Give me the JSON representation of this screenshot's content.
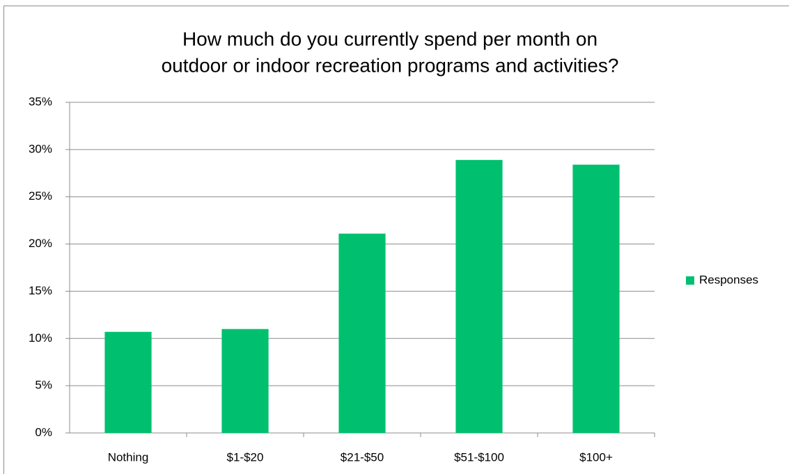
{
  "chart_data": {
    "type": "bar",
    "title": [
      "How much do you currently spend per month on",
      "outdoor or indoor recreation programs and activities?"
    ],
    "categories": [
      "Nothing",
      "$1-$20",
      "$21-$50",
      "$51-$100",
      "$100+"
    ],
    "series": [
      {
        "name": "Responses",
        "color": "#00c070",
        "values": [
          10.7,
          11.0,
          21.1,
          28.9,
          28.4
        ]
      }
    ],
    "ylim": [
      0,
      35
    ],
    "yticks": [
      {
        "value": 0,
        "label": "0%"
      },
      {
        "value": 5,
        "label": "5%"
      },
      {
        "value": 10,
        "label": "10%"
      },
      {
        "value": 15,
        "label": "15%"
      },
      {
        "value": 20,
        "label": "20%"
      },
      {
        "value": 25,
        "label": "25%"
      },
      {
        "value": 30,
        "label": "30%"
      },
      {
        "value": 35,
        "label": "35%"
      }
    ],
    "grid": true,
    "legend": "right"
  }
}
